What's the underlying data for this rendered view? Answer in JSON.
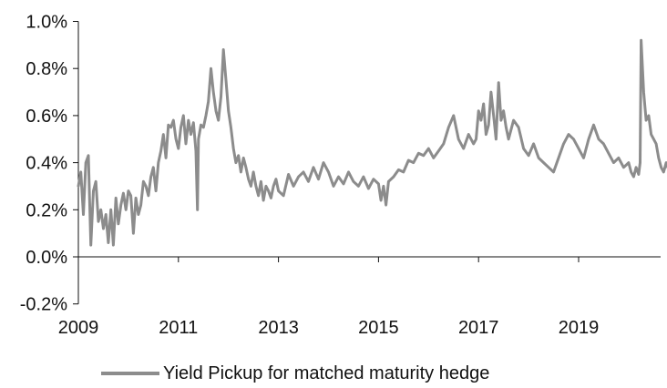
{
  "chart_data": {
    "type": "line",
    "title": "",
    "xlabel": "",
    "ylabel": "",
    "x_ticks": [
      "2009",
      "2011",
      "2013",
      "2015",
      "2017",
      "2019"
    ],
    "x_tick_values": [
      2009,
      2011,
      2013,
      2015,
      2017,
      2019
    ],
    "xlim": [
      2009.0,
      2020.85
    ],
    "y_ticks": [
      "-0.2%",
      "0.0%",
      "0.2%",
      "0.4%",
      "0.6%",
      "0.8%",
      "1.0%"
    ],
    "y_tick_values": [
      -0.2,
      0.0,
      0.2,
      0.4,
      0.6,
      0.8,
      1.0
    ],
    "ylim": [
      -0.2,
      1.0
    ],
    "grid": false,
    "legend_position": "bottom",
    "series": [
      {
        "name": "Yield Pickup for matched maturity hedge",
        "color": "#8c8c8c",
        "x": [
          2009.0,
          2009.05,
          2009.1,
          2009.15,
          2009.2,
          2009.25,
          2009.3,
          2009.35,
          2009.4,
          2009.45,
          2009.5,
          2009.55,
          2009.6,
          2009.65,
          2009.7,
          2009.75,
          2009.8,
          2009.85,
          2009.9,
          2009.95,
          2010.0,
          2010.05,
          2010.1,
          2010.15,
          2010.2,
          2010.25,
          2010.3,
          2010.35,
          2010.4,
          2010.45,
          2010.5,
          2010.55,
          2010.6,
          2010.65,
          2010.7,
          2010.75,
          2010.8,
          2010.85,
          2010.9,
          2010.95,
          2011.0,
          2011.05,
          2011.1,
          2011.15,
          2011.2,
          2011.25,
          2011.3,
          2011.35,
          2011.38,
          2011.4,
          2011.45,
          2011.5,
          2011.55,
          2011.6,
          2011.65,
          2011.7,
          2011.75,
          2011.8,
          2011.85,
          2011.9,
          2011.95,
          2012.0,
          2012.05,
          2012.1,
          2012.15,
          2012.2,
          2012.25,
          2012.3,
          2012.35,
          2012.4,
          2012.45,
          2012.5,
          2012.55,
          2012.6,
          2012.65,
          2012.7,
          2012.75,
          2012.8,
          2012.85,
          2012.9,
          2012.95,
          2013.0,
          2013.1,
          2013.2,
          2013.3,
          2013.4,
          2013.5,
          2013.6,
          2013.7,
          2013.8,
          2013.9,
          2014.0,
          2014.1,
          2014.2,
          2014.3,
          2014.4,
          2014.5,
          2014.6,
          2014.7,
          2014.8,
          2014.9,
          2015.0,
          2015.05,
          2015.1,
          2015.15,
          2015.2,
          2015.3,
          2015.4,
          2015.5,
          2015.6,
          2015.7,
          2015.8,
          2015.9,
          2016.0,
          2016.1,
          2016.2,
          2016.3,
          2016.4,
          2016.5,
          2016.6,
          2016.7,
          2016.8,
          2016.9,
          2016.95,
          2017.0,
          2017.05,
          2017.1,
          2017.15,
          2017.2,
          2017.25,
          2017.3,
          2017.35,
          2017.4,
          2017.45,
          2017.5,
          2017.55,
          2017.6,
          2017.7,
          2017.8,
          2017.9,
          2018.0,
          2018.1,
          2018.2,
          2018.3,
          2018.4,
          2018.5,
          2018.6,
          2018.7,
          2018.8,
          2018.9,
          2019.0,
          2019.1,
          2019.2,
          2019.3,
          2019.4,
          2019.5,
          2019.6,
          2019.7,
          2019.8,
          2019.9,
          2020.0,
          2020.05,
          2020.1,
          2020.15,
          2020.2,
          2020.23,
          2020.25,
          2020.3,
          2020.35,
          2020.4,
          2020.45,
          2020.5,
          2020.55,
          2020.6,
          2020.65,
          2020.7,
          2020.75,
          2020.8,
          2020.85
        ],
        "y": [
          0.3,
          0.36,
          0.18,
          0.4,
          0.43,
          0.05,
          0.28,
          0.32,
          0.15,
          0.2,
          0.12,
          0.18,
          0.06,
          0.2,
          0.05,
          0.25,
          0.14,
          0.22,
          0.27,
          0.2,
          0.28,
          0.26,
          0.1,
          0.25,
          0.18,
          0.22,
          0.32,
          0.3,
          0.26,
          0.34,
          0.38,
          0.28,
          0.4,
          0.45,
          0.52,
          0.42,
          0.56,
          0.55,
          0.58,
          0.5,
          0.46,
          0.55,
          0.6,
          0.48,
          0.58,
          0.52,
          0.57,
          0.45,
          0.2,
          0.5,
          0.56,
          0.55,
          0.6,
          0.66,
          0.8,
          0.7,
          0.62,
          0.58,
          0.68,
          0.88,
          0.75,
          0.62,
          0.55,
          0.46,
          0.4,
          0.43,
          0.36,
          0.42,
          0.38,
          0.33,
          0.3,
          0.36,
          0.3,
          0.26,
          0.32,
          0.24,
          0.3,
          0.28,
          0.25,
          0.3,
          0.33,
          0.28,
          0.26,
          0.35,
          0.3,
          0.34,
          0.36,
          0.32,
          0.38,
          0.33,
          0.4,
          0.36,
          0.3,
          0.34,
          0.31,
          0.36,
          0.32,
          0.3,
          0.34,
          0.29,
          0.33,
          0.31,
          0.24,
          0.3,
          0.22,
          0.32,
          0.34,
          0.37,
          0.36,
          0.41,
          0.4,
          0.44,
          0.43,
          0.46,
          0.42,
          0.45,
          0.48,
          0.55,
          0.6,
          0.5,
          0.46,
          0.52,
          0.48,
          0.5,
          0.62,
          0.58,
          0.65,
          0.52,
          0.56,
          0.7,
          0.6,
          0.5,
          0.74,
          0.58,
          0.62,
          0.55,
          0.5,
          0.58,
          0.55,
          0.46,
          0.43,
          0.48,
          0.42,
          0.4,
          0.38,
          0.36,
          0.42,
          0.48,
          0.52,
          0.5,
          0.46,
          0.42,
          0.5,
          0.56,
          0.5,
          0.48,
          0.44,
          0.4,
          0.42,
          0.38,
          0.4,
          0.36,
          0.34,
          0.38,
          0.35,
          0.4,
          0.92,
          0.7,
          0.58,
          0.6,
          0.52,
          0.5,
          0.48,
          0.42,
          0.38,
          0.36,
          0.4,
          0.37,
          0.38
        ]
      }
    ]
  }
}
